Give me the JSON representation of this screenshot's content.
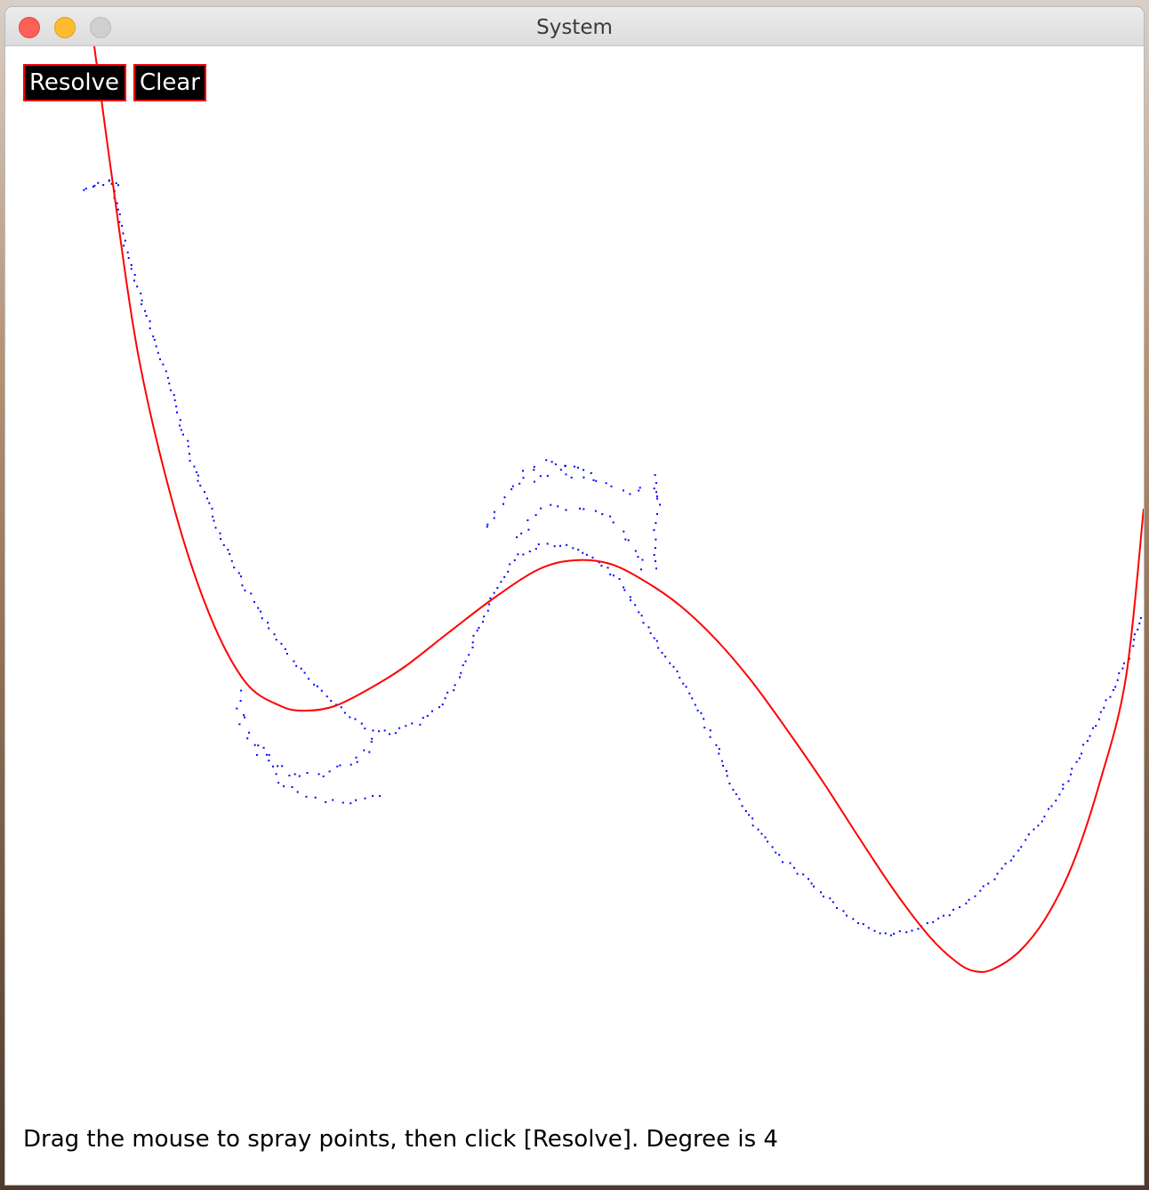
{
  "window": {
    "title": "System"
  },
  "toolbar": {
    "resolve_label": "Resolve",
    "clear_label": "Clear"
  },
  "status": {
    "message": "Drag the mouse to spray points, then click [Resolve]. Degree is 4"
  },
  "colors": {
    "fit_curve": "#ff0000",
    "sprayed_points": "#0000ff",
    "button_bg": "#000000",
    "button_border": "#ff0000",
    "button_text": "#ffffff"
  }
}
